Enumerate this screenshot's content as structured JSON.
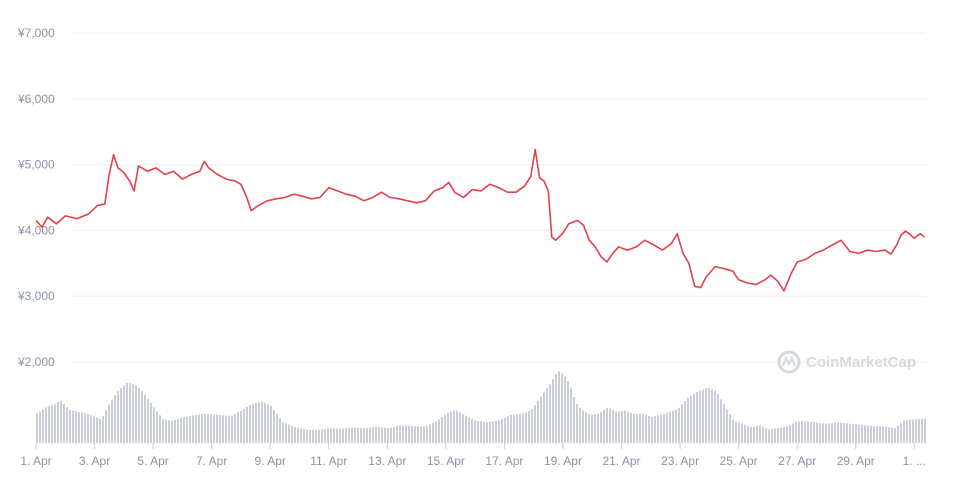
{
  "chart_data": {
    "type": "line",
    "x_unit": "date (April)",
    "y_unit": "JPY",
    "ylim": [
      2000,
      7000
    ],
    "y_ticks": [
      {
        "value": 7000,
        "label": "¥7,000"
      },
      {
        "value": 6000,
        "label": "¥6,000"
      },
      {
        "value": 5000,
        "label": "¥5,000"
      },
      {
        "value": 4000,
        "label": "¥4,000"
      },
      {
        "value": 3000,
        "label": "¥3,000"
      },
      {
        "value": 2000,
        "label": "¥2,000"
      }
    ],
    "x_ticks": [
      {
        "day": 1,
        "label": "1. Apr"
      },
      {
        "day": 3,
        "label": "3. Apr"
      },
      {
        "day": 5,
        "label": "5. Apr"
      },
      {
        "day": 7,
        "label": "7. Apr"
      },
      {
        "day": 9,
        "label": "9. Apr"
      },
      {
        "day": 11,
        "label": "11. Apr"
      },
      {
        "day": 13,
        "label": "13. Apr"
      },
      {
        "day": 15,
        "label": "15. Apr"
      },
      {
        "day": 17,
        "label": "17. Apr"
      },
      {
        "day": 19,
        "label": "19. Apr"
      },
      {
        "day": 21,
        "label": "21. Apr"
      },
      {
        "day": 23,
        "label": "23. Apr"
      },
      {
        "day": 25,
        "label": "25. Apr"
      },
      {
        "day": 27,
        "label": "27. Apr"
      },
      {
        "day": 29,
        "label": "29. Apr"
      },
      {
        "day": 31,
        "label": "1. ..."
      }
    ],
    "grid": true,
    "series": [
      {
        "kind": "price",
        "color": "#e0424d",
        "points": [
          [
            1.0,
            4150
          ],
          [
            1.2,
            4050
          ],
          [
            1.4,
            4200
          ],
          [
            1.7,
            4100
          ],
          [
            2.0,
            4220
          ],
          [
            2.4,
            4180
          ],
          [
            2.8,
            4250
          ],
          [
            3.1,
            4380
          ],
          [
            3.35,
            4400
          ],
          [
            3.5,
            4850
          ],
          [
            3.65,
            5150
          ],
          [
            3.8,
            4950
          ],
          [
            4.0,
            4880
          ],
          [
            4.2,
            4750
          ],
          [
            4.35,
            4600
          ],
          [
            4.5,
            4980
          ],
          [
            4.8,
            4900
          ],
          [
            5.1,
            4950
          ],
          [
            5.4,
            4850
          ],
          [
            5.7,
            4900
          ],
          [
            6.0,
            4780
          ],
          [
            6.3,
            4850
          ],
          [
            6.6,
            4900
          ],
          [
            6.75,
            5050
          ],
          [
            6.9,
            4950
          ],
          [
            7.2,
            4850
          ],
          [
            7.5,
            4780
          ],
          [
            7.8,
            4750
          ],
          [
            8.0,
            4700
          ],
          [
            8.2,
            4500
          ],
          [
            8.35,
            4300
          ],
          [
            8.6,
            4380
          ],
          [
            8.9,
            4450
          ],
          [
            9.2,
            4480
          ],
          [
            9.5,
            4500
          ],
          [
            9.8,
            4550
          ],
          [
            10.1,
            4520
          ],
          [
            10.4,
            4480
          ],
          [
            10.7,
            4500
          ],
          [
            11.0,
            4650
          ],
          [
            11.3,
            4600
          ],
          [
            11.6,
            4550
          ],
          [
            11.9,
            4520
          ],
          [
            12.2,
            4450
          ],
          [
            12.5,
            4500
          ],
          [
            12.8,
            4580
          ],
          [
            13.1,
            4500
          ],
          [
            13.4,
            4480
          ],
          [
            13.7,
            4450
          ],
          [
            14.0,
            4420
          ],
          [
            14.3,
            4450
          ],
          [
            14.6,
            4600
          ],
          [
            14.9,
            4650
          ],
          [
            15.1,
            4730
          ],
          [
            15.3,
            4580
          ],
          [
            15.6,
            4500
          ],
          [
            15.9,
            4620
          ],
          [
            16.2,
            4600
          ],
          [
            16.5,
            4700
          ],
          [
            16.8,
            4650
          ],
          [
            17.1,
            4580
          ],
          [
            17.4,
            4580
          ],
          [
            17.7,
            4680
          ],
          [
            17.9,
            4820
          ],
          [
            18.05,
            5230
          ],
          [
            18.2,
            4800
          ],
          [
            18.35,
            4750
          ],
          [
            18.5,
            4600
          ],
          [
            18.62,
            3900
          ],
          [
            18.75,
            3850
          ],
          [
            19.0,
            3960
          ],
          [
            19.2,
            4100
          ],
          [
            19.5,
            4150
          ],
          [
            19.7,
            4080
          ],
          [
            19.9,
            3850
          ],
          [
            20.1,
            3750
          ],
          [
            20.3,
            3600
          ],
          [
            20.5,
            3520
          ],
          [
            20.7,
            3650
          ],
          [
            20.9,
            3750
          ],
          [
            21.2,
            3700
          ],
          [
            21.5,
            3750
          ],
          [
            21.8,
            3850
          ],
          [
            22.1,
            3780
          ],
          [
            22.4,
            3700
          ],
          [
            22.7,
            3800
          ],
          [
            22.9,
            3950
          ],
          [
            23.1,
            3650
          ],
          [
            23.3,
            3500
          ],
          [
            23.5,
            3150
          ],
          [
            23.7,
            3130
          ],
          [
            23.9,
            3300
          ],
          [
            24.2,
            3450
          ],
          [
            24.5,
            3420
          ],
          [
            24.8,
            3380
          ],
          [
            25.0,
            3250
          ],
          [
            25.3,
            3200
          ],
          [
            25.6,
            3180
          ],
          [
            25.9,
            3250
          ],
          [
            26.1,
            3320
          ],
          [
            26.35,
            3220
          ],
          [
            26.55,
            3080
          ],
          [
            26.8,
            3350
          ],
          [
            27.0,
            3520
          ],
          [
            27.3,
            3560
          ],
          [
            27.6,
            3650
          ],
          [
            27.9,
            3700
          ],
          [
            28.2,
            3780
          ],
          [
            28.5,
            3850
          ],
          [
            28.8,
            3680
          ],
          [
            29.1,
            3650
          ],
          [
            29.4,
            3700
          ],
          [
            29.7,
            3680
          ],
          [
            30.0,
            3700
          ],
          [
            30.2,
            3640
          ],
          [
            30.4,
            3780
          ],
          [
            30.55,
            3930
          ],
          [
            30.7,
            3990
          ],
          [
            30.85,
            3940
          ],
          [
            31.0,
            3880
          ],
          [
            31.2,
            3950
          ],
          [
            31.35,
            3900
          ]
        ]
      },
      {
        "kind": "volume",
        "color": "#c9ced8",
        "relative_scale": [
          0,
          1
        ],
        "points": [
          [
            1.0,
            0.4
          ],
          [
            1.3,
            0.48
          ],
          [
            1.6,
            0.52
          ],
          [
            1.8,
            0.58
          ],
          [
            2.1,
            0.45
          ],
          [
            2.4,
            0.42
          ],
          [
            2.7,
            0.4
          ],
          [
            3.0,
            0.35
          ],
          [
            3.2,
            0.32
          ],
          [
            3.5,
            0.55
          ],
          [
            3.8,
            0.72
          ],
          [
            4.1,
            0.82
          ],
          [
            4.4,
            0.78
          ],
          [
            4.7,
            0.65
          ],
          [
            5.0,
            0.48
          ],
          [
            5.3,
            0.32
          ],
          [
            5.6,
            0.3
          ],
          [
            6.0,
            0.35
          ],
          [
            6.4,
            0.38
          ],
          [
            6.8,
            0.4
          ],
          [
            7.2,
            0.38
          ],
          [
            7.6,
            0.36
          ],
          [
            8.0,
            0.44
          ],
          [
            8.3,
            0.52
          ],
          [
            8.7,
            0.56
          ],
          [
            9.0,
            0.5
          ],
          [
            9.4,
            0.28
          ],
          [
            9.8,
            0.22
          ],
          [
            10.2,
            0.18
          ],
          [
            10.6,
            0.17
          ],
          [
            11.0,
            0.2
          ],
          [
            11.4,
            0.19
          ],
          [
            11.8,
            0.21
          ],
          [
            12.2,
            0.2
          ],
          [
            12.6,
            0.22
          ],
          [
            13.0,
            0.2
          ],
          [
            13.4,
            0.24
          ],
          [
            13.8,
            0.23
          ],
          [
            14.2,
            0.22
          ],
          [
            14.6,
            0.28
          ],
          [
            15.0,
            0.4
          ],
          [
            15.3,
            0.45
          ],
          [
            15.6,
            0.38
          ],
          [
            16.0,
            0.3
          ],
          [
            16.4,
            0.28
          ],
          [
            16.8,
            0.31
          ],
          [
            17.2,
            0.38
          ],
          [
            17.6,
            0.4
          ],
          [
            17.9,
            0.45
          ],
          [
            18.2,
            0.62
          ],
          [
            18.5,
            0.78
          ],
          [
            18.8,
            0.98
          ],
          [
            19.0,
            0.92
          ],
          [
            19.2,
            0.8
          ],
          [
            19.4,
            0.55
          ],
          [
            19.6,
            0.45
          ],
          [
            19.9,
            0.38
          ],
          [
            20.2,
            0.4
          ],
          [
            20.5,
            0.48
          ],
          [
            20.8,
            0.42
          ],
          [
            21.1,
            0.44
          ],
          [
            21.4,
            0.39
          ],
          [
            21.7,
            0.4
          ],
          [
            22.0,
            0.35
          ],
          [
            22.3,
            0.38
          ],
          [
            22.6,
            0.42
          ],
          [
            22.9,
            0.46
          ],
          [
            23.2,
            0.6
          ],
          [
            23.6,
            0.7
          ],
          [
            23.9,
            0.75
          ],
          [
            24.2,
            0.7
          ],
          [
            24.5,
            0.5
          ],
          [
            24.8,
            0.3
          ],
          [
            25.1,
            0.26
          ],
          [
            25.4,
            0.22
          ],
          [
            25.7,
            0.24
          ],
          [
            26.0,
            0.18
          ],
          [
            26.3,
            0.2
          ],
          [
            26.6,
            0.22
          ],
          [
            26.9,
            0.28
          ],
          [
            27.2,
            0.3
          ],
          [
            27.6,
            0.28
          ],
          [
            28.0,
            0.26
          ],
          [
            28.4,
            0.28
          ],
          [
            28.8,
            0.26
          ],
          [
            29.2,
            0.24
          ],
          [
            29.6,
            0.23
          ],
          [
            30.0,
            0.22
          ],
          [
            30.3,
            0.2
          ],
          [
            30.6,
            0.3
          ],
          [
            30.9,
            0.32
          ],
          [
            31.35,
            0.33
          ]
        ]
      }
    ]
  },
  "watermark": {
    "text": "CoinMarketCap",
    "icon": "coinmarketcap-logo-icon"
  }
}
